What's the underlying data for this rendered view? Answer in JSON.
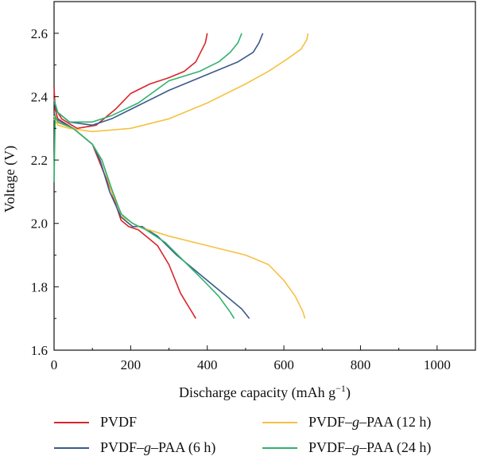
{
  "chart_data": {
    "type": "line",
    "xlabel": "Discharge capacity (mAh g",
    "xlabel_sup": "−1",
    "xlabel_end": ")",
    "ylabel": "Voltage (V)",
    "xlim": [
      0,
      1100
    ],
    "ylim": [
      1.6,
      2.7
    ],
    "xticks": [
      0,
      200,
      400,
      600,
      800,
      1000
    ],
    "yticks": [
      1.6,
      1.8,
      2.0,
      2.2,
      2.4,
      2.6
    ],
    "grid": false,
    "legend_position": "bottom",
    "series": [
      {
        "name": "PVDF",
        "color": "#d9252b",
        "discharge": [
          [
            0,
            2.43
          ],
          [
            3,
            2.36
          ],
          [
            10,
            2.33
          ],
          [
            50,
            2.3
          ],
          [
            100,
            2.25
          ],
          [
            130,
            2.16
          ],
          [
            150,
            2.1
          ],
          [
            175,
            2.01
          ],
          [
            195,
            1.99
          ],
          [
            220,
            1.98
          ],
          [
            270,
            1.93
          ],
          [
            300,
            1.87
          ],
          [
            330,
            1.78
          ],
          [
            345,
            1.75
          ],
          [
            360,
            1.72
          ],
          [
            370,
            1.7
          ]
        ],
        "charge": [
          [
            0,
            2.4
          ],
          [
            5,
            2.36
          ],
          [
            20,
            2.33
          ],
          [
            60,
            2.3
          ],
          [
            110,
            2.31
          ],
          [
            160,
            2.36
          ],
          [
            200,
            2.41
          ],
          [
            250,
            2.44
          ],
          [
            300,
            2.46
          ],
          [
            340,
            2.48
          ],
          [
            370,
            2.51
          ],
          [
            395,
            2.57
          ],
          [
            400,
            2.6
          ]
        ]
      },
      {
        "name": "PVDF–g–PAA (6 h)",
        "color": "#3c5a8c",
        "discharge": [
          [
            0,
            2.35
          ],
          [
            5,
            2.33
          ],
          [
            50,
            2.3
          ],
          [
            100,
            2.25
          ],
          [
            120,
            2.2
          ],
          [
            145,
            2.1
          ],
          [
            175,
            2.02
          ],
          [
            205,
            1.99
          ],
          [
            230,
            1.99
          ],
          [
            270,
            1.96
          ],
          [
            320,
            1.9
          ],
          [
            380,
            1.84
          ],
          [
            440,
            1.78
          ],
          [
            490,
            1.73
          ],
          [
            510,
            1.7
          ]
        ],
        "charge": [
          [
            0,
            2.38
          ],
          [
            10,
            2.35
          ],
          [
            40,
            2.32
          ],
          [
            100,
            2.31
          ],
          [
            150,
            2.33
          ],
          [
            200,
            2.36
          ],
          [
            300,
            2.42
          ],
          [
            400,
            2.47
          ],
          [
            480,
            2.51
          ],
          [
            520,
            2.54
          ],
          [
            535,
            2.57
          ],
          [
            545,
            2.6
          ]
        ]
      },
      {
        "name": "PVDF–g–PAA (12 h)",
        "color": "#f5c242",
        "discharge": [
          [
            0,
            2.34
          ],
          [
            5,
            2.32
          ],
          [
            50,
            2.3
          ],
          [
            100,
            2.25
          ],
          [
            125,
            2.2
          ],
          [
            150,
            2.1
          ],
          [
            180,
            2.02
          ],
          [
            220,
            1.99
          ],
          [
            300,
            1.96
          ],
          [
            400,
            1.93
          ],
          [
            500,
            1.9
          ],
          [
            560,
            1.87
          ],
          [
            600,
            1.82
          ],
          [
            630,
            1.77
          ],
          [
            650,
            1.72
          ],
          [
            655,
            1.7
          ]
        ],
        "charge": [
          [
            0,
            2.33
          ],
          [
            10,
            2.31
          ],
          [
            40,
            2.3
          ],
          [
            100,
            2.29
          ],
          [
            200,
            2.3
          ],
          [
            300,
            2.33
          ],
          [
            400,
            2.38
          ],
          [
            500,
            2.44
          ],
          [
            560,
            2.48
          ],
          [
            610,
            2.52
          ],
          [
            645,
            2.55
          ],
          [
            660,
            2.58
          ],
          [
            663,
            2.6
          ]
        ]
      },
      {
        "name": "PVDF–g–PAA (24 h)",
        "color": "#2fb36e",
        "discharge": [
          [
            0,
            2.13
          ],
          [
            3,
            2.34
          ],
          [
            10,
            2.32
          ],
          [
            50,
            2.3
          ],
          [
            100,
            2.25
          ],
          [
            125,
            2.2
          ],
          [
            150,
            2.11
          ],
          [
            175,
            2.03
          ],
          [
            205,
            2.0
          ],
          [
            240,
            1.98
          ],
          [
            290,
            1.94
          ],
          [
            340,
            1.88
          ],
          [
            390,
            1.82
          ],
          [
            430,
            1.77
          ],
          [
            460,
            1.72
          ],
          [
            470,
            1.7
          ]
        ],
        "charge": [
          [
            0,
            2.39
          ],
          [
            10,
            2.35
          ],
          [
            40,
            2.32
          ],
          [
            100,
            2.32
          ],
          [
            150,
            2.34
          ],
          [
            220,
            2.38
          ],
          [
            300,
            2.45
          ],
          [
            380,
            2.48
          ],
          [
            430,
            2.51
          ],
          [
            460,
            2.54
          ],
          [
            480,
            2.57
          ],
          [
            490,
            2.6
          ]
        ]
      }
    ]
  }
}
